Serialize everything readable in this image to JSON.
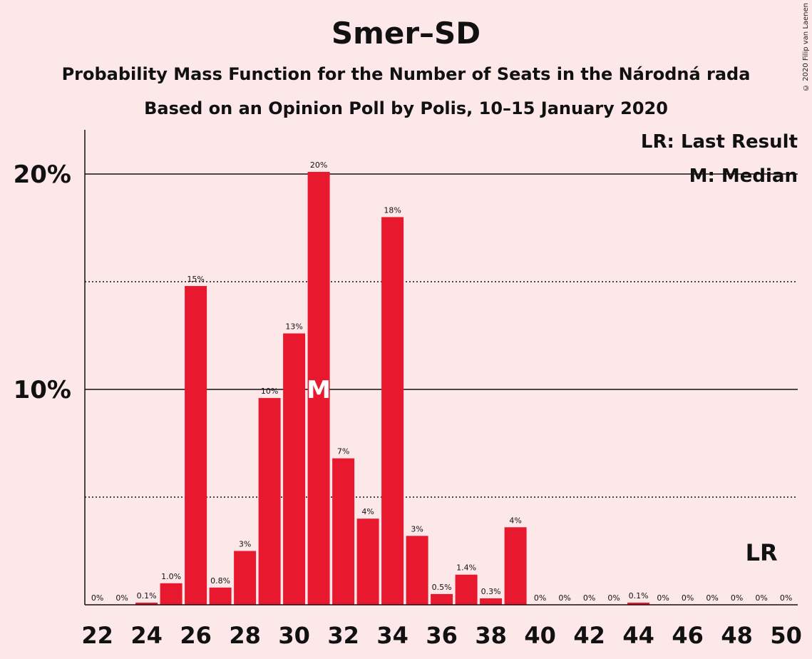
{
  "chart_data": {
    "type": "bar",
    "title": "Smer–SD",
    "subtitle_lines": [
      "Probability Mass Function for the Number of Seats in the Národná rada",
      "Based on an Opinion Poll by Polis, 10–15 January 2020"
    ],
    "copyright": "© 2020 Filip van Laenen",
    "legend": [
      "LR: Last Result",
      "M: Median"
    ],
    "xlabel": "",
    "ylabel": "",
    "ylim": [
      0,
      22
    ],
    "y_ticks": [
      {
        "value": 10,
        "label": "10%"
      },
      {
        "value": 20,
        "label": "20%"
      }
    ],
    "y_dotted_lines": [
      5,
      15
    ],
    "x_tick_labels": [
      "22",
      "24",
      "26",
      "28",
      "30",
      "32",
      "34",
      "36",
      "38",
      "40",
      "42",
      "44",
      "46",
      "48",
      "50"
    ],
    "categories": [
      22,
      23,
      24,
      25,
      26,
      27,
      28,
      29,
      30,
      31,
      32,
      33,
      34,
      35,
      36,
      37,
      38,
      39,
      40,
      41,
      42,
      43,
      44,
      45,
      46,
      47,
      48,
      49,
      50
    ],
    "values": [
      0,
      0,
      0.1,
      1.0,
      14.8,
      0.8,
      2.5,
      9.6,
      12.6,
      20.1,
      6.8,
      4.0,
      18.0,
      3.2,
      0.5,
      1.4,
      0.3,
      3.6,
      0,
      0,
      0,
      0,
      0.1,
      0,
      0,
      0,
      0,
      0,
      0
    ],
    "data_labels": [
      "0%",
      "0%",
      "0.1%",
      "1.0%",
      "15%",
      "0.8%",
      "3%",
      "10%",
      "13%",
      "20%",
      "7%",
      "4%",
      "18%",
      "3%",
      "0.5%",
      "1.4%",
      "0.3%",
      "4%",
      "0%",
      "0%",
      "0%",
      "0%",
      "0.1%",
      "0%",
      "0%",
      "0%",
      "0%",
      "0%",
      "0%"
    ],
    "median_seat": 31,
    "median_marker": "M",
    "last_result_seat": 49,
    "last_result_marker": "LR",
    "bar_color": "#e8192f",
    "background": "#fde8e9"
  }
}
